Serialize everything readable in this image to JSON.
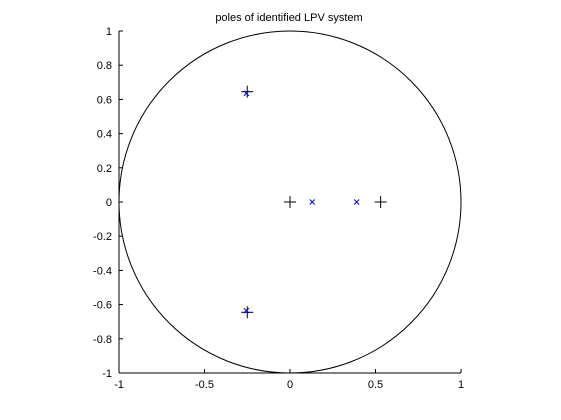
{
  "chart_data": {
    "type": "scatter",
    "title": "poles of identified LPV system",
    "xlabel": "",
    "ylabel": "",
    "xlim": [
      -1,
      1
    ],
    "ylim": [
      -1,
      1
    ],
    "grid": false,
    "xticks": [
      -1,
      -0.5,
      0,
      0.5,
      1
    ],
    "xtick_labels": [
      "-1",
      "-0.5",
      "0",
      "0.5",
      "1"
    ],
    "yticks": [
      1,
      0.8,
      0.6,
      0.4,
      0.2,
      0,
      -0.2,
      -0.4,
      -0.6,
      -0.8,
      -1
    ],
    "ytick_labels": [
      "1",
      "0.8",
      "0.6",
      "0.4",
      "0.2",
      "0",
      "-0.2",
      "-0.4",
      "-0.6",
      "-0.8",
      "-1"
    ],
    "unit_circle": {
      "radius": 1,
      "color": "#000000"
    },
    "series": [
      {
        "name": "plus-markers",
        "marker": "+",
        "color": "#000000",
        "points": [
          [
            -0.25,
            0.645
          ],
          [
            -0.25,
            -0.645
          ],
          [
            0.0,
            0.0
          ],
          [
            0.53,
            0.0
          ]
        ]
      },
      {
        "name": "cross-markers",
        "marker": "x",
        "color": "#0000ff",
        "points": [
          [
            -0.255,
            0.635
          ],
          [
            -0.255,
            -0.635
          ],
          [
            0.13,
            0.0
          ],
          [
            0.39,
            0.0
          ]
        ]
      }
    ]
  }
}
